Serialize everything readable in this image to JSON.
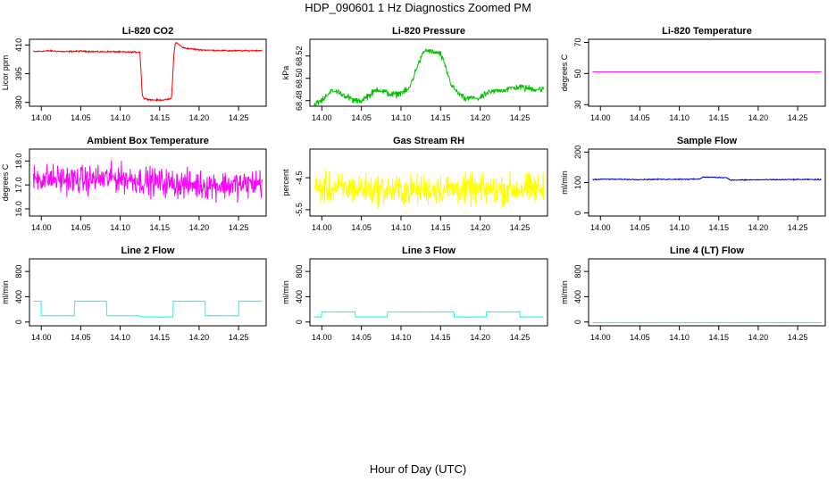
{
  "figure": {
    "title": "HDP_090601  1 Hz Diagnostics Zoomed PM",
    "xlabel": "Hour of Day (UTC)"
  },
  "chart_data": [
    {
      "type": "line",
      "title": "Li-820 CO2",
      "ylabel": "Licor ppm",
      "color": "#ff0000",
      "xlim": [
        13.985,
        14.285
      ],
      "ylim": [
        378,
        413
      ],
      "yticks": [
        380,
        395,
        410
      ],
      "ytick_labels": [
        "380",
        "395",
        "410"
      ],
      "xticks": [
        14.0,
        14.05,
        14.1,
        14.15,
        14.2,
        14.25
      ],
      "xtick_labels": [
        "14.00",
        "14.05",
        "14.10",
        "14.15",
        "14.20",
        "14.25"
      ],
      "x": [
        13.99,
        14.01,
        14.03,
        14.05,
        14.07,
        14.09,
        14.11,
        14.125,
        14.128,
        14.13,
        14.14,
        14.15,
        14.16,
        14.165,
        14.168,
        14.17,
        14.18,
        14.2,
        14.22,
        14.24,
        14.26,
        14.28
      ],
      "y": [
        406.5,
        407.0,
        406.5,
        406.8,
        406.5,
        406.5,
        406.3,
        406.3,
        384,
        382,
        381.3,
        381.2,
        381.5,
        382,
        405,
        411.5,
        408.5,
        407.5,
        407.2,
        407.0,
        407.0,
        407.2
      ]
    },
    {
      "type": "line",
      "title": "Li-820 Pressure",
      "ylabel": "kPa",
      "color": "#00c000",
      "xlim": [
        13.985,
        14.285
      ],
      "ylim": [
        68.475,
        68.535
      ],
      "yticks": [
        68.48,
        68.5,
        68.52
      ],
      "ytick_labels": [
        "68.48",
        "68.50",
        "68.52"
      ],
      "xticks": [
        14.0,
        14.05,
        14.1,
        14.15,
        14.2,
        14.25
      ],
      "xtick_labels": [
        "14.00",
        "14.05",
        "14.10",
        "14.15",
        "14.20",
        "14.25"
      ],
      "x": [
        13.99,
        14.0,
        14.01,
        14.02,
        14.04,
        14.05,
        14.07,
        14.09,
        14.11,
        14.12,
        14.13,
        14.15,
        14.165,
        14.18,
        14.2,
        14.21,
        14.23,
        14.25,
        14.27,
        14.28
      ],
      "y": [
        68.476,
        68.48,
        68.488,
        68.488,
        68.48,
        68.48,
        68.49,
        68.485,
        68.49,
        68.51,
        68.525,
        68.522,
        68.492,
        68.482,
        68.482,
        68.487,
        68.49,
        68.492,
        68.49,
        68.49
      ]
    },
    {
      "type": "line",
      "title": "Li-820 Temperature",
      "ylabel": "degrees C",
      "color": "#ff00ff",
      "xlim": [
        13.985,
        14.285
      ],
      "ylim": [
        29,
        72
      ],
      "yticks": [
        30,
        50,
        70
      ],
      "ytick_labels": [
        "30",
        "50",
        "70"
      ],
      "xticks": [
        14.0,
        14.05,
        14.1,
        14.15,
        14.2,
        14.25
      ],
      "xtick_labels": [
        "14.00",
        "14.05",
        "14.10",
        "14.15",
        "14.20",
        "14.25"
      ],
      "x": [
        13.99,
        14.28
      ],
      "y": [
        51,
        51
      ]
    },
    {
      "type": "line",
      "title": "Ambient Box Temperature",
      "ylabel": "degrees C",
      "color": "#ff00ff",
      "xlim": [
        13.985,
        14.285
      ],
      "ylim": [
        15.7,
        18.5
      ],
      "yticks": [
        16.0,
        17.0,
        18.0
      ],
      "ytick_labels": [
        "16.0",
        "17.0",
        "18.0"
      ],
      "xticks": [
        14.0,
        14.05,
        14.1,
        14.15,
        14.2,
        14.25
      ],
      "xtick_labels": [
        "14.00",
        "14.05",
        "14.10",
        "14.15",
        "14.20",
        "14.25"
      ],
      "x": [
        13.99,
        14.05,
        14.1,
        14.15,
        14.2,
        14.25,
        14.28
      ],
      "y": [
        17.3,
        17.2,
        17.3,
        17.1,
        17.0,
        17.0,
        17.1
      ]
    },
    {
      "type": "line",
      "title": "Gas Stream RH",
      "ylabel": "percent",
      "color": "#ffff00",
      "xlim": [
        13.985,
        14.285
      ],
      "ylim": [
        -5.7,
        -3.6
      ],
      "yticks": [
        -5.5,
        -4.5
      ],
      "ytick_labels": [
        "-5.5",
        "-4.5"
      ],
      "xticks": [
        14.0,
        14.05,
        14.1,
        14.15,
        14.2,
        14.25
      ],
      "xtick_labels": [
        "14.00",
        "14.05",
        "14.10",
        "14.15",
        "14.20",
        "14.25"
      ],
      "x": [
        13.99,
        14.05,
        14.1,
        14.15,
        14.2,
        14.25,
        14.28
      ],
      "y": [
        -4.85,
        -4.85,
        -4.9,
        -4.85,
        -4.9,
        -4.85,
        -4.85
      ]
    },
    {
      "type": "line",
      "title": "Sample Flow",
      "ylabel": "ml/min",
      "color": "#0000cc",
      "xlim": [
        13.985,
        14.285
      ],
      "ylim": [
        -10,
        210
      ],
      "yticks": [
        0,
        100,
        200
      ],
      "ytick_labels": [
        "0",
        "100",
        "200"
      ],
      "xticks": [
        14.0,
        14.05,
        14.1,
        14.15,
        14.2,
        14.25
      ],
      "xtick_labels": [
        "14.00",
        "14.05",
        "14.10",
        "14.15",
        "14.20",
        "14.25"
      ],
      "x": [
        13.99,
        14.0,
        14.05,
        14.1,
        14.125,
        14.13,
        14.16,
        14.165,
        14.2,
        14.25,
        14.28
      ],
      "y": [
        110,
        111,
        110,
        111,
        111,
        118,
        116,
        108,
        109,
        110,
        110
      ]
    },
    {
      "type": "line",
      "title": "Line 2 Flow",
      "ylabel": "ml/min",
      "color": "#00ffff",
      "xlim": [
        13.985,
        14.285
      ],
      "ylim": [
        -60,
        1000
      ],
      "yticks": [
        0,
        400,
        800
      ],
      "ytick_labels": [
        "0",
        "400",
        "800"
      ],
      "xticks": [
        14.0,
        14.05,
        14.1,
        14.15,
        14.2,
        14.25
      ],
      "xtick_labels": [
        "14.00",
        "14.05",
        "14.10",
        "14.15",
        "14.20",
        "14.25"
      ],
      "x": [
        13.99,
        14.0,
        14.0,
        14.042,
        14.042,
        14.083,
        14.083,
        14.125,
        14.125,
        14.167,
        14.167,
        14.208,
        14.208,
        14.25,
        14.25,
        14.28
      ],
      "y": [
        330,
        330,
        100,
        100,
        330,
        330,
        100,
        100,
        80,
        80,
        330,
        330,
        100,
        100,
        330,
        330
      ]
    },
    {
      "type": "line",
      "title": "Line 3 Flow",
      "ylabel": "ml/min",
      "color": "#00ffff",
      "xlim": [
        13.985,
        14.285
      ],
      "ylim": [
        -60,
        1000
      ],
      "yticks": [
        0,
        400,
        800
      ],
      "ytick_labels": [
        "0",
        "400",
        "800"
      ],
      "xticks": [
        14.0,
        14.05,
        14.1,
        14.15,
        14.2,
        14.25
      ],
      "xtick_labels": [
        "14.00",
        "14.05",
        "14.10",
        "14.15",
        "14.20",
        "14.25"
      ],
      "x": [
        13.99,
        14.0,
        14.0,
        14.042,
        14.042,
        14.083,
        14.083,
        14.167,
        14.167,
        14.208,
        14.208,
        14.25,
        14.25,
        14.28
      ],
      "y": [
        80,
        80,
        160,
        160,
        80,
        80,
        160,
        160,
        80,
        80,
        160,
        160,
        80,
        80
      ]
    },
    {
      "type": "line",
      "title": "Line 4 (LT) Flow",
      "ylabel": "ml/min",
      "color": "#00ffff",
      "xlim": [
        13.985,
        14.285
      ],
      "ylim": [
        -60,
        1000
      ],
      "yticks": [
        0,
        400,
        800
      ],
      "ytick_labels": [
        "0",
        "400",
        "800"
      ],
      "xticks": [
        14.0,
        14.05,
        14.1,
        14.15,
        14.2,
        14.25
      ],
      "xtick_labels": [
        "14.00",
        "14.05",
        "14.10",
        "14.15",
        "14.20",
        "14.25"
      ],
      "x": [
        13.99,
        14.28
      ],
      "y": [
        -10,
        -10
      ]
    }
  ]
}
